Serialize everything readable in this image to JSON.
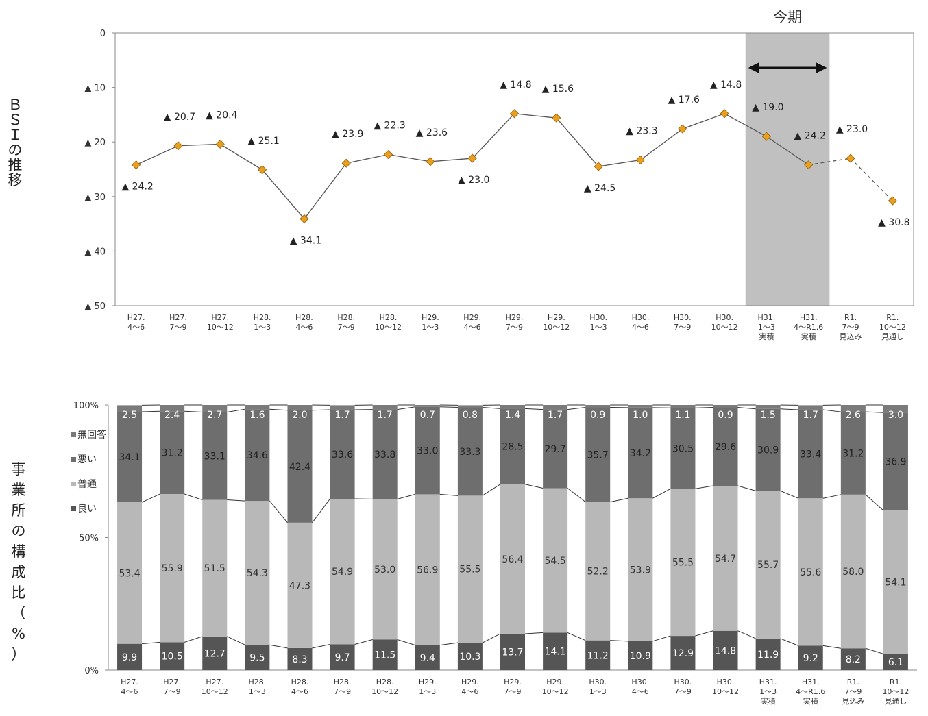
{
  "chart_data": [
    {
      "type": "line",
      "ylabel": "ＢＳＩの推移",
      "y_ticks": [
        "0",
        "▲ 10",
        "▲ 20",
        "▲ 30",
        "▲ 40",
        "▲ 50"
      ],
      "ylim": [
        0,
        50
      ],
      "y_inverted": true,
      "categories": [
        [
          "H27.",
          "4～6"
        ],
        [
          "H27.",
          "7～9"
        ],
        [
          "H27.",
          "10～12"
        ],
        [
          "H28.",
          "1～3"
        ],
        [
          "H28.",
          "4～6"
        ],
        [
          "H28.",
          "7～9"
        ],
        [
          "H28.",
          "10～12"
        ],
        [
          "H29.",
          "1～3"
        ],
        [
          "H29.",
          "4～6"
        ],
        [
          "H29.",
          "7～9"
        ],
        [
          "H29.",
          "10～12"
        ],
        [
          "H30.",
          "1～3"
        ],
        [
          "H30.",
          "4～6"
        ],
        [
          "H30.",
          "7～9"
        ],
        [
          "H30.",
          "10～12"
        ],
        [
          "H31.",
          "1～3",
          "実積"
        ],
        [
          "H31.",
          "4～R1.6",
          "実積"
        ],
        [
          "R1.",
          "7～9",
          "見込み"
        ],
        [
          "R1.",
          "10～12",
          "見通し"
        ]
      ],
      "values": [
        -24.2,
        -20.7,
        -20.4,
        -25.1,
        -34.1,
        -23.9,
        -22.3,
        -23.6,
        -23.0,
        -14.8,
        -15.6,
        -24.5,
        -23.3,
        -17.6,
        -14.8,
        -19.0,
        -24.2,
        -23.0,
        -30.8
      ],
      "value_labels": [
        "▲ 24.2",
        "▲ 20.7",
        "▲ 20.4",
        "▲ 25.1",
        "▲ 34.1",
        "▲ 23.9",
        "▲ 22.3",
        "▲ 23.6",
        "▲ 23.0",
        "▲ 14.8",
        "▲ 15.6",
        "▲ 24.5",
        "▲ 23.3",
        "▲ 17.6",
        "▲ 14.8",
        "▲ 19.0",
        "▲ 24.2",
        "▲ 23.0",
        "▲ 30.8"
      ],
      "label_side": [
        "below",
        "above",
        "above",
        "above",
        "below",
        "above",
        "above",
        "above",
        "below",
        "above",
        "above",
        "below",
        "above",
        "above",
        "above",
        "above",
        "above",
        "above",
        "below"
      ],
      "dashed_from_index": 16,
      "highlight": {
        "label": "今期",
        "from_index": 15,
        "to_index": 16,
        "color": "#c0c0c0"
      },
      "marker_color": "#e8a020",
      "grid": false
    },
    {
      "type": "stacked_bar",
      "ylabel": "事業所の構成比（%）",
      "y_ticks": [
        "0%",
        "50%",
        "100%"
      ],
      "ylim": [
        0,
        100
      ],
      "categories": [
        [
          "H27.",
          "4～6"
        ],
        [
          "H27.",
          "7～9"
        ],
        [
          "H27.",
          "10～12"
        ],
        [
          "H28.",
          "1～3"
        ],
        [
          "H28.",
          "4～6"
        ],
        [
          "H28.",
          "7～9"
        ],
        [
          "H28.",
          "10～12"
        ],
        [
          "H29.",
          "1～3"
        ],
        [
          "H29.",
          "4～6"
        ],
        [
          "H29.",
          "7～9"
        ],
        [
          "H29.",
          "10～12"
        ],
        [
          "H30.",
          "1～3"
        ],
        [
          "H30.",
          "4～6"
        ],
        [
          "H30.",
          "7～9"
        ],
        [
          "H30.",
          "10～12"
        ],
        [
          "H31.",
          "1～3",
          "実積"
        ],
        [
          "H31.",
          "4～R1.6",
          "実積"
        ],
        [
          "R1.",
          "7～9",
          "見込み"
        ],
        [
          "R1.",
          "10～12",
          "見通し"
        ]
      ],
      "legend": [
        "無回答",
        "悪い",
        "普通",
        "良い"
      ],
      "series": [
        {
          "name": "良い",
          "color": "#555555",
          "values": [
            9.9,
            10.5,
            12.7,
            9.5,
            8.3,
            9.7,
            11.5,
            9.4,
            10.3,
            13.7,
            14.1,
            11.2,
            10.9,
            12.9,
            14.8,
            11.9,
            9.2,
            8.2,
            6.1
          ],
          "labels": [
            "9.9",
            "10.5",
            "12.7",
            "9.5",
            "8.3",
            "9.7",
            "11.5",
            "9.4",
            "10.3",
            "13.7",
            "14.1",
            "11.2",
            "10.9",
            "12.9",
            "14.8",
            "11.9",
            "9.2",
            "8.2",
            "6.1"
          ]
        },
        {
          "name": "普通",
          "color": "#b8b8b8",
          "values": [
            53.4,
            55.9,
            51.5,
            54.3,
            47.3,
            54.9,
            53.0,
            56.9,
            55.5,
            56.4,
            54.5,
            52.2,
            53.9,
            55.5,
            54.7,
            55.7,
            55.6,
            58.0,
            54.1
          ],
          "labels": [
            "53.4",
            "55.9",
            "51.5",
            "54.3",
            "47.3",
            "54.9",
            "53.0",
            "56.9",
            "55.5",
            "56.4",
            "54.5",
            "52.2",
            "53.9",
            "55.5",
            "54.7",
            "55.7",
            "55.6",
            "58.0",
            "54.1"
          ]
        },
        {
          "name": "悪い",
          "color": "#6e6e6e",
          "values": [
            34.1,
            31.2,
            33.1,
            34.6,
            42.4,
            33.6,
            33.8,
            33.0,
            33.3,
            28.5,
            29.7,
            35.7,
            34.2,
            30.5,
            29.6,
            30.9,
            33.4,
            31.2,
            36.9
          ],
          "labels": [
            "34.1",
            "31.2",
            "33.1",
            "34.6",
            "42.4",
            "33.6",
            "33.8",
            "33.0",
            "33.3",
            "28.5",
            "29.7",
            "35.7",
            "34.2",
            "30.5",
            "29.6",
            "30.9",
            "33.4",
            "31.2",
            "36.9"
          ]
        },
        {
          "name": "無回答",
          "color": "#7a7a7a",
          "values": [
            2.5,
            2.4,
            2.7,
            1.6,
            2.0,
            1.7,
            1.7,
            0.7,
            0.8,
            1.4,
            1.7,
            0.9,
            1.0,
            1.1,
            0.9,
            1.5,
            1.7,
            2.6,
            3.0
          ],
          "labels": [
            "2.5",
            "2.4",
            "2.7",
            "1.6",
            "2.0",
            "1.7",
            "1.7",
            "0.7",
            "0.8",
            "1.4",
            "1.7",
            "0.9",
            "1.0",
            "1.1",
            "0.9",
            "1.5",
            "1.7",
            "2.6",
            "3.0"
          ]
        }
      ],
      "grid": false
    }
  ]
}
